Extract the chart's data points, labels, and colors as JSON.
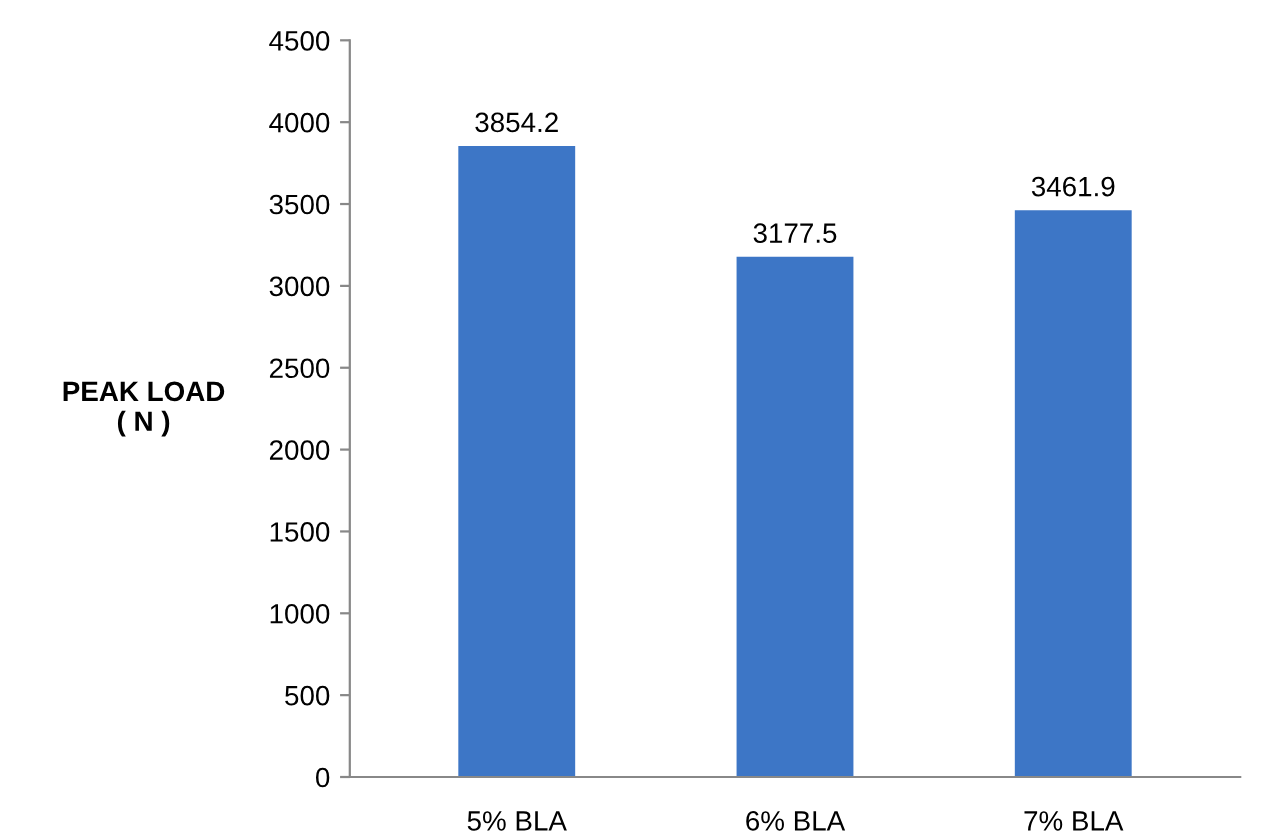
{
  "chart_data": {
    "type": "bar",
    "ylabel": "PEAK LOAD\n( N )",
    "categories": [
      "5% BLA",
      "6% BLA",
      "7% BLA"
    ],
    "values": [
      3854.2,
      3177.5,
      3461.9
    ],
    "color": "#3d76c6",
    "ylim": [
      0,
      4500
    ],
    "yticks": [
      0,
      500,
      1000,
      1500,
      2000,
      2500,
      3000,
      3500,
      4000,
      4500
    ],
    "data_labels": true,
    "grid": false,
    "legend": false
  }
}
